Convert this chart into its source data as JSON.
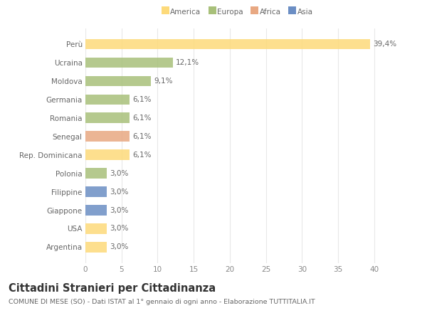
{
  "countries": [
    "Perù",
    "Ucraina",
    "Moldova",
    "Germania",
    "Romania",
    "Senegal",
    "Rep. Dominicana",
    "Polonia",
    "Filippine",
    "Giappone",
    "USA",
    "Argentina"
  ],
  "values": [
    39.4,
    12.1,
    9.1,
    6.1,
    6.1,
    6.1,
    6.1,
    3.0,
    3.0,
    3.0,
    3.0,
    3.0
  ],
  "labels": [
    "39,4%",
    "12,1%",
    "9,1%",
    "6,1%",
    "6,1%",
    "6,1%",
    "6,1%",
    "3,0%",
    "3,0%",
    "3,0%",
    "3,0%",
    "3,0%"
  ],
  "colors": [
    "#FDDA7A",
    "#A8C07A",
    "#A8C07A",
    "#A8C07A",
    "#A8C07A",
    "#E8A882",
    "#FDDA7A",
    "#A8C07A",
    "#6B8EC4",
    "#6B8EC4",
    "#FDDA7A",
    "#FDDA7A"
  ],
  "legend": [
    {
      "label": "America",
      "color": "#FDDA7A"
    },
    {
      "label": "Europa",
      "color": "#A8C07A"
    },
    {
      "label": "Africa",
      "color": "#E8A882"
    },
    {
      "label": "Asia",
      "color": "#6B8EC4"
    }
  ],
  "xlim": [
    0,
    42
  ],
  "xticks": [
    0,
    5,
    10,
    15,
    20,
    25,
    30,
    35,
    40
  ],
  "title": "Cittadini Stranieri per Cittadinanza",
  "subtitle": "COMUNE DI MESE (SO) - Dati ISTAT al 1° gennaio di ogni anno - Elaborazione TUTTITALIA.IT",
  "background_color": "#FFFFFF",
  "grid_color": "#E8E8E8",
  "bar_height": 0.55,
  "label_fontsize": 7.5,
  "tick_fontsize": 7.5,
  "title_fontsize": 10.5,
  "subtitle_fontsize": 6.8
}
